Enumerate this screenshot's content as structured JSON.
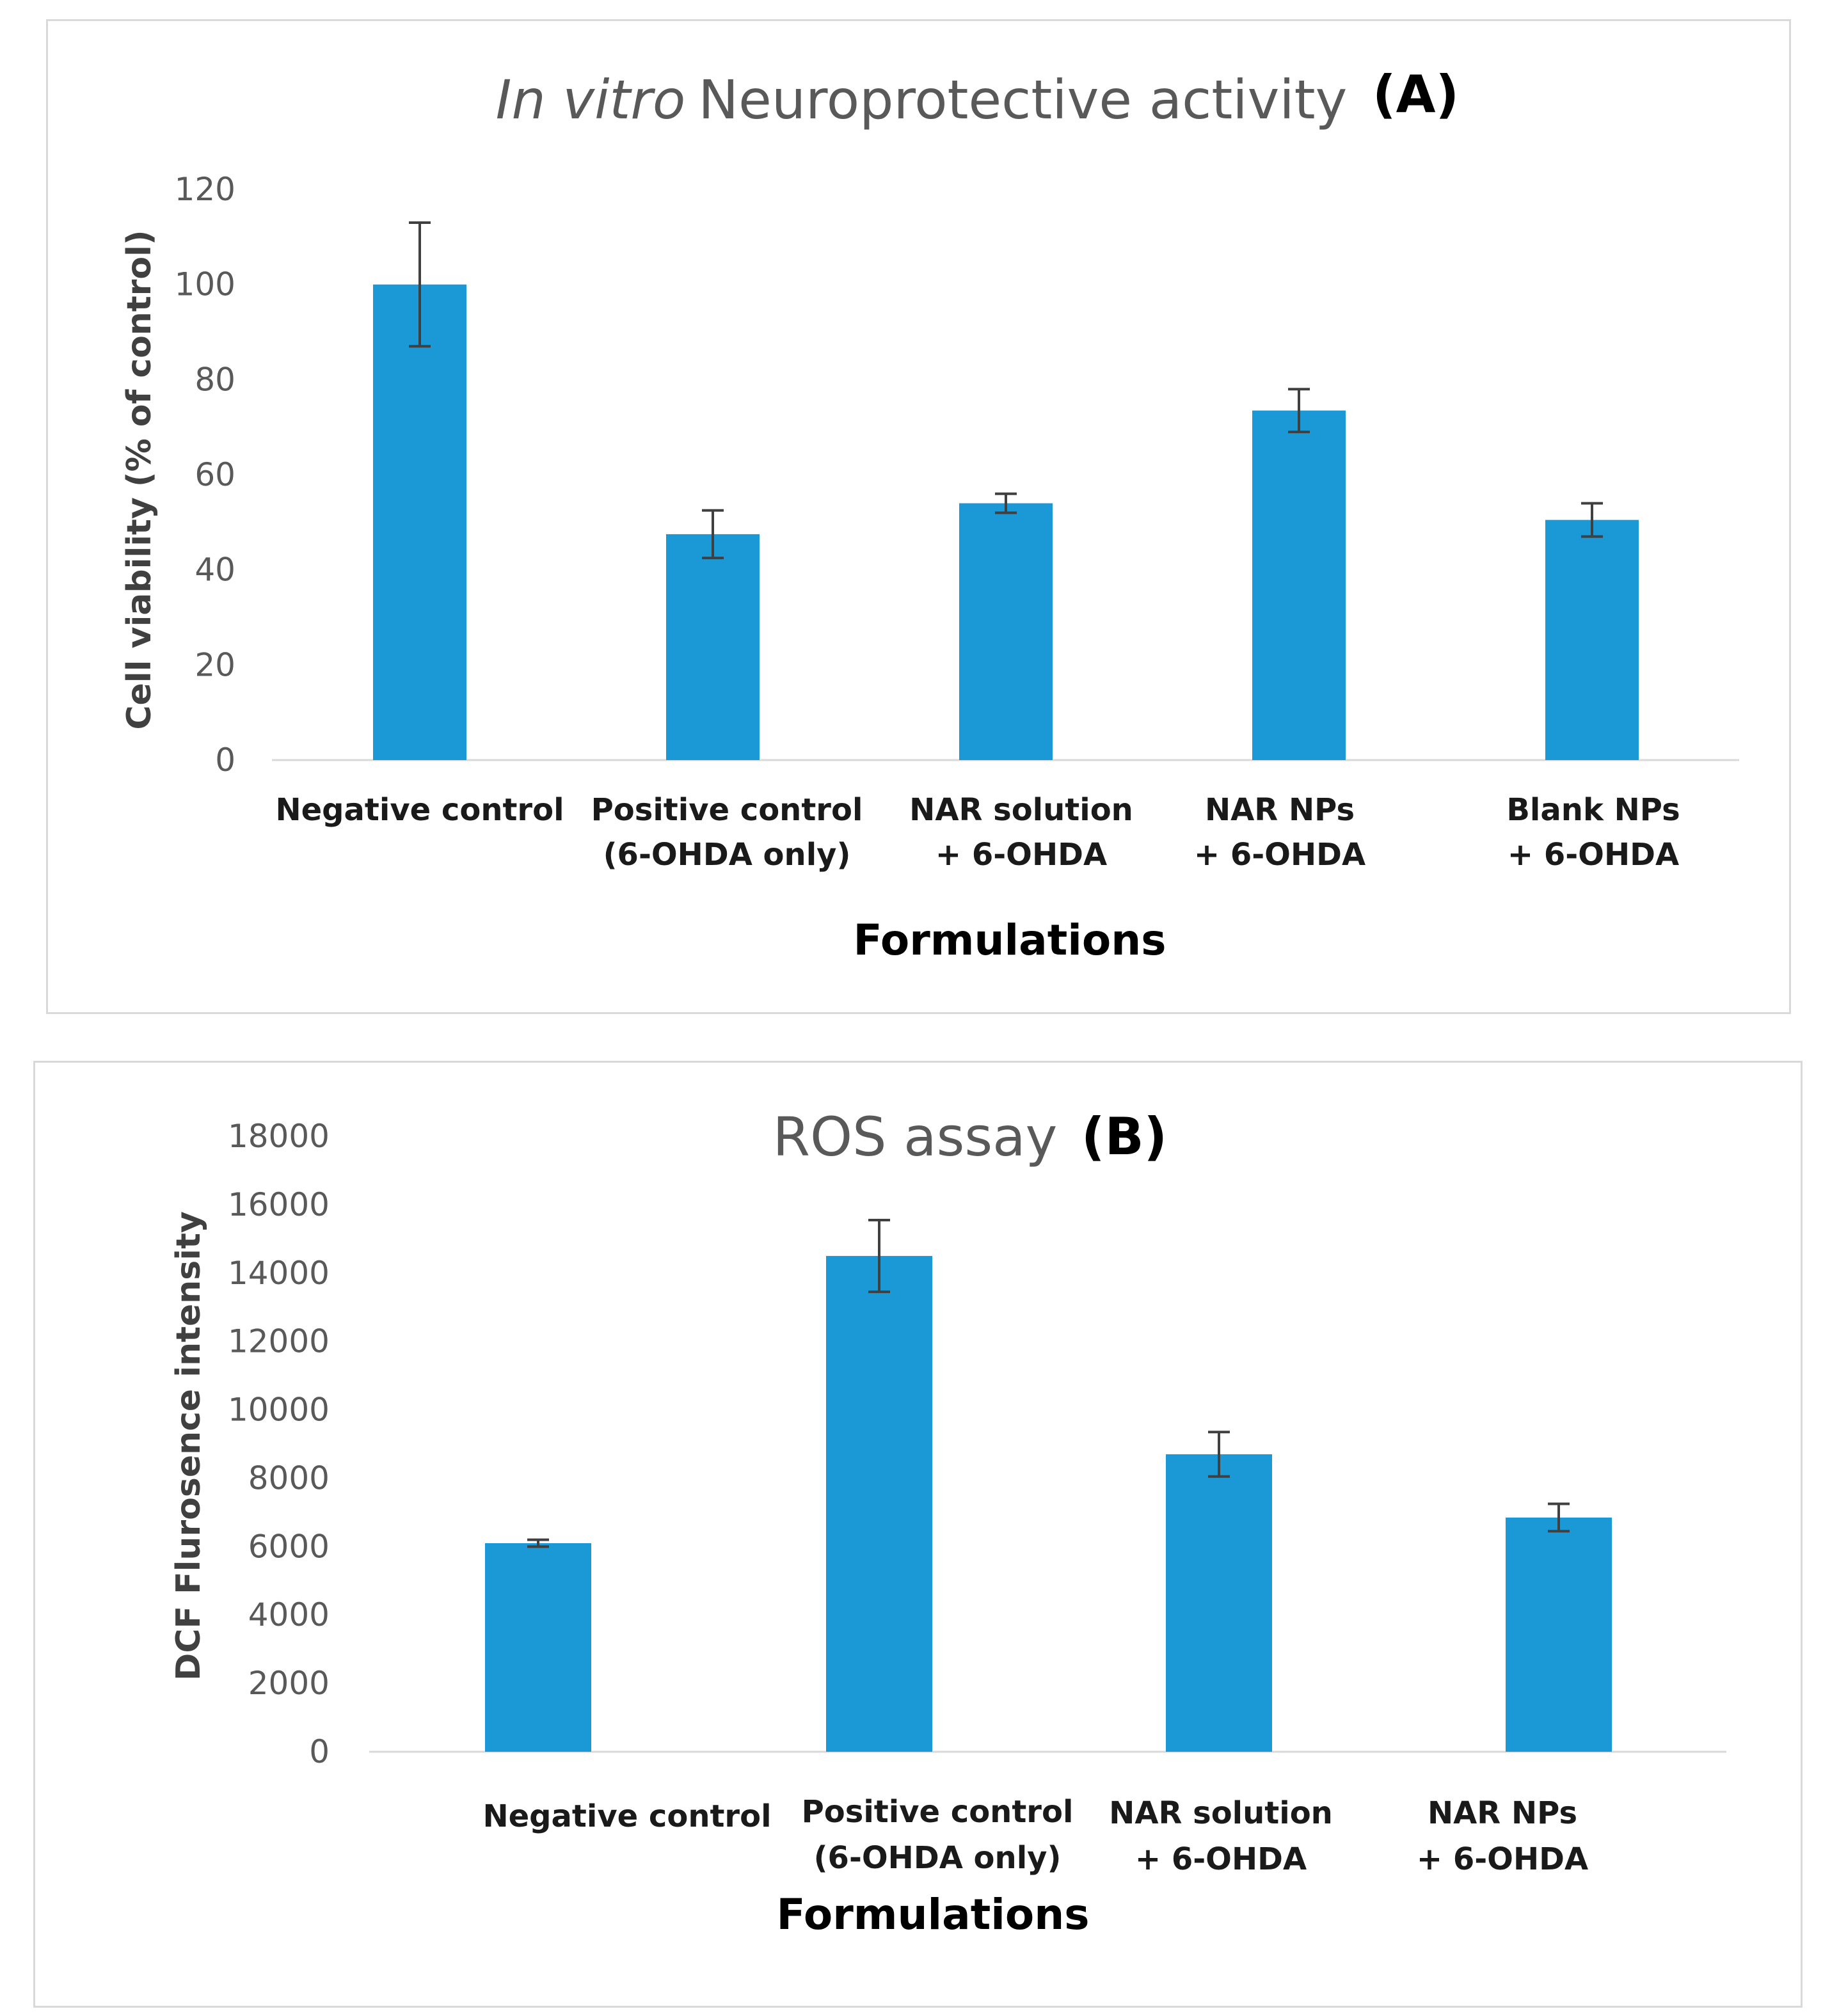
{
  "colors": {
    "bar": "#1b98d6",
    "error_bar": "#404040",
    "axis": "#d9d9d9",
    "tick_text": "#595959"
  },
  "chart_data": [
    {
      "id": "A",
      "type": "bar",
      "title_italic": "In vitro",
      "title_rest": "Neuroprotective activity",
      "panel_label": "(A)",
      "xlabel": "Formulations",
      "ylabel_main": "Cell viability",
      "ylabel_units": "(% of control)",
      "ylim": [
        0,
        120
      ],
      "yticks": [
        0,
        20,
        40,
        60,
        80,
        100,
        120
      ],
      "categories": [
        [
          "Negative control"
        ],
        [
          "Positive control",
          "(6-OHDA only)"
        ],
        [
          "NAR solution",
          "+ 6-OHDA"
        ],
        [
          "NAR NPs",
          "+ 6-OHDA"
        ],
        [
          "Blank NPs",
          "+ 6-OHDA"
        ]
      ],
      "values": [
        100,
        47.5,
        54,
        73.5,
        50.5
      ],
      "errors": [
        13,
        5,
        2,
        4.5,
        3.5
      ],
      "grid": false
    },
    {
      "id": "B",
      "type": "bar",
      "title": "ROS assay",
      "panel_label": "(B)",
      "xlabel": "Formulations",
      "ylabel": "DCF Flurosence intensity",
      "ylim": [
        0,
        18000
      ],
      "yticks": [
        0,
        2000,
        4000,
        6000,
        8000,
        10000,
        12000,
        14000,
        16000,
        18000
      ],
      "categories": [
        [
          "Negative control"
        ],
        [
          "Positive control",
          "(6-OHDA only)"
        ],
        [
          "NAR solution",
          "+ 6-OHDA"
        ],
        [
          "NAR NPs",
          "+ 6-OHDA"
        ]
      ],
      "values": [
        6100,
        14500,
        8700,
        6850
      ],
      "errors": [
        100,
        1050,
        650,
        400
      ],
      "grid": false
    }
  ]
}
